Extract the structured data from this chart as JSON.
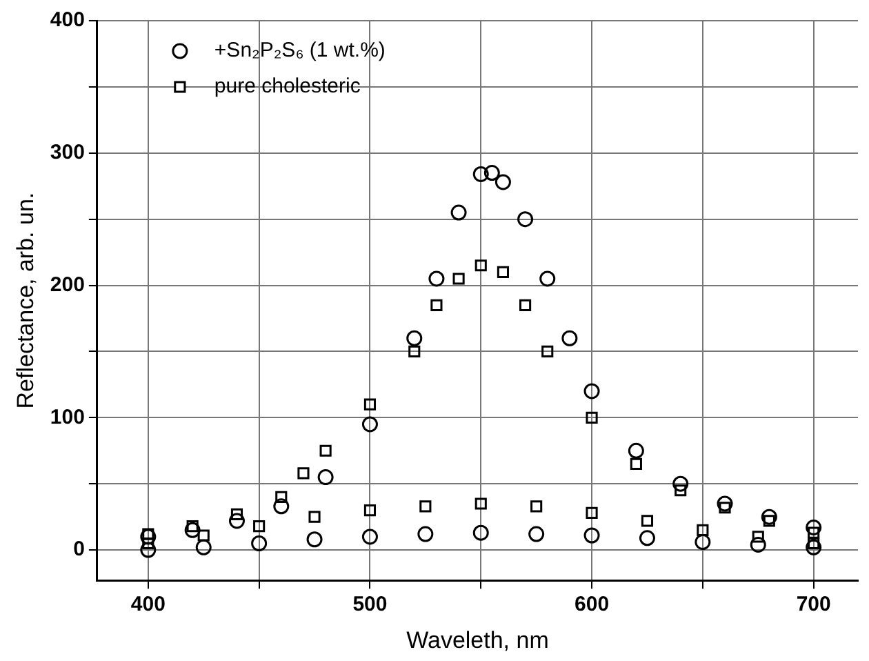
{
  "chart_data": {
    "type": "scatter",
    "xlabel": "Waveleth, nm",
    "ylabel": "Reflectance, arb. un.",
    "xlim": [
      377,
      720
    ],
    "ylim": [
      -23,
      400
    ],
    "xticks": [
      400,
      {
        "value": 450,
        "label": null
      },
      500,
      {
        "value": 550,
        "label": null
      },
      600,
      {
        "value": 650,
        "label": null
      },
      700
    ],
    "yticks": [
      0,
      {
        "value": 50,
        "label": null
      },
      100,
      {
        "value": 150,
        "label": null
      },
      200,
      {
        "value": 250,
        "label": null
      },
      300,
      {
        "value": 350,
        "label": null
      },
      400
    ],
    "grid": true,
    "legend": "top left",
    "series": [
      {
        "name": "+Sn₂P₂S₆ (1 wt.%)",
        "color": "#000000",
        "marker": "circle",
        "x": [
          400,
          420,
          440,
          460,
          480,
          500,
          520,
          530,
          540,
          550,
          555,
          560,
          570,
          580,
          590,
          600,
          620,
          640,
          660,
          680,
          700
        ],
        "values": [
          10,
          15,
          22,
          33,
          55,
          95,
          160,
          205,
          255,
          284,
          285,
          278,
          250,
          205,
          160,
          120,
          75,
          50,
          35,
          25,
          17
        ]
      },
      {
        "name": "pure cholesteric",
        "color": "#000000",
        "marker": "square",
        "x": [
          400,
          420,
          440,
          460,
          470,
          480,
          500,
          520,
          530,
          540,
          550,
          560,
          570,
          580,
          600,
          620,
          640,
          660,
          680,
          700
        ],
        "values": [
          12,
          18,
          27,
          40,
          58,
          75,
          110,
          150,
          185,
          205,
          215,
          210,
          185,
          150,
          100,
          65,
          45,
          32,
          22,
          13
        ]
      },
      {
        "color": "#000000",
        "marker": "circle",
        "x": [
          400,
          425,
          450,
          475,
          500,
          525,
          550,
          575,
          600,
          625,
          650,
          675,
          700
        ],
        "values": [
          0,
          2,
          5,
          8,
          10,
          12,
          13,
          12,
          11,
          9,
          6,
          4,
          2
        ]
      },
      {
        "color": "#000000",
        "marker": "square",
        "x": [
          400,
          425,
          450,
          475,
          500,
          525,
          550,
          575,
          600,
          625,
          650,
          675,
          700
        ],
        "values": [
          5,
          11,
          18,
          25,
          30,
          33,
          35,
          33,
          28,
          22,
          15,
          10,
          5
        ]
      }
    ]
  }
}
